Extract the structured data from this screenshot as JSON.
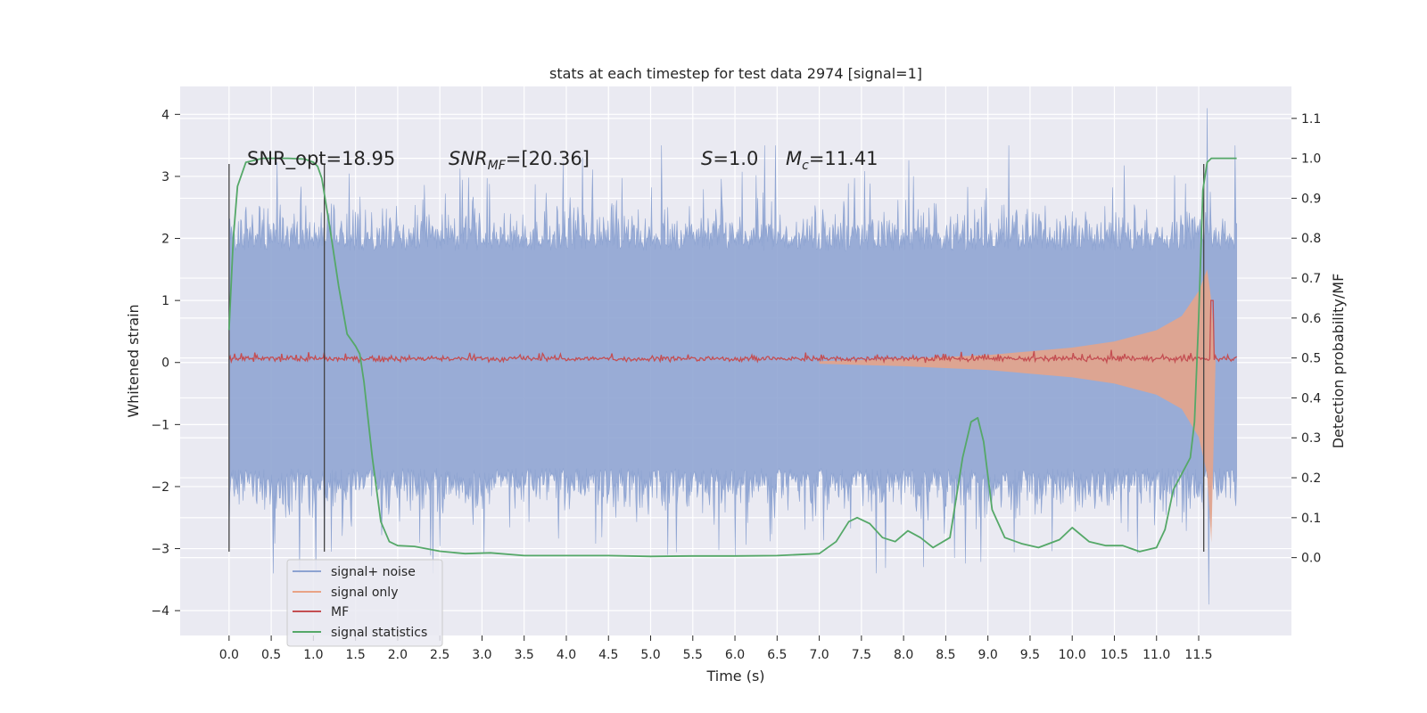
{
  "chart_data": {
    "type": "line",
    "title": "stats at each timestep for test data 2974 [signal=1]",
    "xlabel": "Time (s)",
    "ylabel": "Whitened strain",
    "y2label": "Detection probability/MF",
    "xlim": [
      -0.58,
      12.6
    ],
    "ylim": [
      -4.4,
      4.45
    ],
    "y2lim": [
      -0.195,
      1.18
    ],
    "x_ticks": [
      0.0,
      0.5,
      1.0,
      1.5,
      2.0,
      2.5,
      3.0,
      3.5,
      4.0,
      4.5,
      5.0,
      5.5,
      6.0,
      6.5,
      7.0,
      7.5,
      8.0,
      8.5,
      9.0,
      9.5,
      10.0,
      10.5,
      11.0,
      11.5
    ],
    "x_tick_labels": [
      "0.0",
      "0.5",
      "1.0",
      "1.5",
      "2.0",
      "2.5",
      "3.0",
      "3.5",
      "4.0",
      "4.5",
      "5.0",
      "5.5",
      "6.0",
      "6.5",
      "7.0",
      "7.5",
      "8.0",
      "8.5",
      "9.0",
      "9.5",
      "10.0",
      "10.5",
      "11.0",
      "11.5"
    ],
    "y_ticks": [
      -4,
      -3,
      -2,
      -1,
      0,
      1,
      2,
      3,
      4
    ],
    "y_tick_labels": [
      "−4",
      "−3",
      "−2",
      "−1",
      "0",
      "1",
      "2",
      "3",
      "4"
    ],
    "y2_ticks": [
      0.0,
      0.1,
      0.2,
      0.3,
      0.4,
      0.5,
      0.6,
      0.7,
      0.8,
      0.9,
      1.0,
      1.1
    ],
    "y2_tick_labels": [
      "0.0",
      "0.1",
      "0.2",
      "0.3",
      "0.4",
      "0.5",
      "0.6",
      "0.7",
      "0.8",
      "0.9",
      "1.0",
      "1.1"
    ],
    "grid": true,
    "legend_position": "lower-left",
    "annotations": {
      "snr_opt": "SNR_opt=18.95",
      "snr_mf_name": "SNR",
      "snr_mf_sub": "MF",
      "snr_mf_value": "=[20.36]",
      "s_name": "S",
      "s_value": "=1.0",
      "mc_name": "M",
      "mc_sub": "c",
      "mc_value": "=11.41"
    },
    "vertical_markers": [
      {
        "x": 0.0,
        "y_from": -3.05,
        "y_to": 3.2
      },
      {
        "x": 1.13,
        "y_from": -3.05,
        "y_to": 3.2
      },
      {
        "x": 11.56,
        "y_from": -3.05,
        "y_to": 3.2
      }
    ],
    "noise_envelope": {
      "x_start": 0.0,
      "x_end": 11.95,
      "typical_low": -1.7,
      "typical_high": 1.8,
      "peak_high": 4.1,
      "peak_low": -3.9
    },
    "signal_only": {
      "x": [
        7.0,
        8.0,
        9.0,
        10.0,
        10.5,
        11.0,
        11.3,
        11.5,
        11.6,
        11.65,
        11.7
      ],
      "upper": [
        0.02,
        0.06,
        0.12,
        0.24,
        0.34,
        0.52,
        0.75,
        1.15,
        1.5,
        1.0,
        0.0
      ],
      "lower": [
        -0.02,
        -0.06,
        -0.12,
        -0.24,
        -0.34,
        -0.52,
        -0.75,
        -1.2,
        -1.8,
        -2.9,
        0.0
      ]
    },
    "series": [
      {
        "name": "signal+ noise",
        "color": "#8da3d1"
      },
      {
        "name": "signal only",
        "color": "#e9a386"
      },
      {
        "name": "MF",
        "color": "#c44e52"
      },
      {
        "name": "signal statistics",
        "color": "#55a868",
        "x": [
          0.0,
          0.05,
          0.1,
          0.2,
          0.4,
          0.7,
          0.9,
          1.0,
          1.05,
          1.1,
          1.2,
          1.3,
          1.4,
          1.5,
          1.55,
          1.6,
          1.7,
          1.8,
          1.9,
          2.0,
          2.2,
          2.5,
          2.8,
          3.1,
          3.5,
          4.0,
          4.5,
          5.0,
          5.5,
          6.0,
          6.5,
          7.0,
          7.2,
          7.35,
          7.45,
          7.6,
          7.75,
          7.9,
          8.05,
          8.2,
          8.35,
          8.55,
          8.7,
          8.8,
          8.88,
          8.95,
          9.05,
          9.2,
          9.4,
          9.6,
          9.85,
          10.0,
          10.2,
          10.4,
          10.6,
          10.8,
          11.0,
          11.1,
          11.2,
          11.3,
          11.4,
          11.45,
          11.5,
          11.55,
          11.6,
          11.65,
          11.7,
          11.8,
          11.95
        ],
        "y": [
          0.57,
          0.8,
          0.93,
          0.99,
          1.0,
          1.0,
          0.998,
          0.99,
          0.98,
          0.95,
          0.82,
          0.68,
          0.56,
          0.53,
          0.51,
          0.44,
          0.25,
          0.09,
          0.04,
          0.03,
          0.028,
          0.016,
          0.01,
          0.012,
          0.005,
          0.005,
          0.005,
          0.003,
          0.004,
          0.004,
          0.005,
          0.01,
          0.04,
          0.09,
          0.1,
          0.085,
          0.05,
          0.04,
          0.067,
          0.05,
          0.025,
          0.05,
          0.25,
          0.34,
          0.35,
          0.29,
          0.12,
          0.05,
          0.035,
          0.025,
          0.045,
          0.075,
          0.04,
          0.03,
          0.03,
          0.015,
          0.025,
          0.07,
          0.17,
          0.21,
          0.25,
          0.34,
          0.6,
          0.92,
          0.99,
          1.0,
          1.0,
          1.0,
          1.0
        ]
      }
    ]
  }
}
